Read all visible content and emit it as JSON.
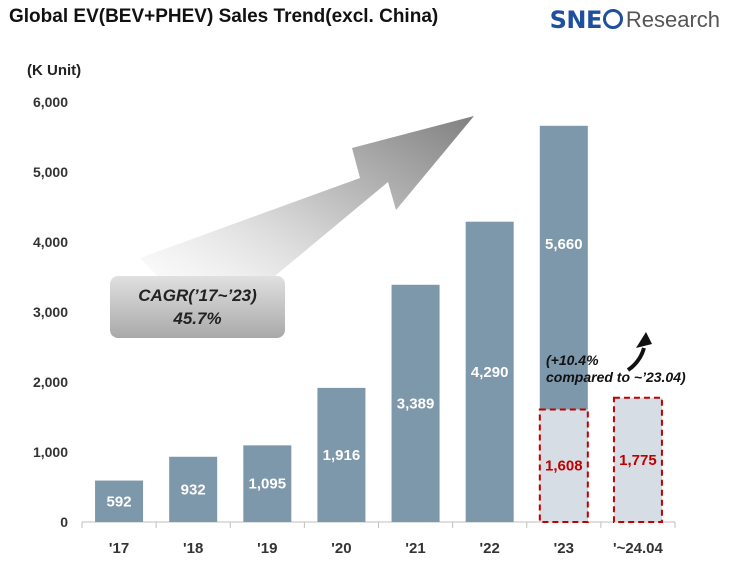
{
  "header": {
    "title": "Global EV(BEV+PHEV)  Sales Trend(excl. China)",
    "unit": "(K Unit)"
  },
  "logo": {
    "sne": "SNE",
    "research": "Research"
  },
  "cagr": {
    "line1": "CAGR(’17~’23)",
    "line2": "45.7%"
  },
  "annotation": {
    "line1": "(+10.4%",
    "line2": "compared to ~’23.04)"
  },
  "colors": {
    "bar": "#7d97ab",
    "highlight_fill": "#d6dde4",
    "highlight_border": "#c00000",
    "highlight_text": "#c00000",
    "arrow": "#888888"
  },
  "chart_data": {
    "type": "bar",
    "categories": [
      "'17",
      "'18",
      "'19",
      "'20",
      "'21",
      "'22",
      "'23",
      "'~24.04"
    ],
    "series": [
      {
        "values": [
          592,
          932,
          1095,
          1916,
          3389,
          4290,
          5660,
          null
        ]
      },
      {
        "values": [
          null,
          null,
          null,
          null,
          null,
          null,
          1608,
          1775
        ]
      }
    ],
    "data_labels": [
      "592",
      "932",
      "1,095",
      "1,916",
      "3,389",
      "4,290",
      "5,660",
      "1,608",
      "1,775"
    ],
    "title": "Global EV(BEV+PHEV)  Sales Trend(excl. China)",
    "ylabel": "(K Unit)",
    "ylim": [
      0,
      6000
    ],
    "yticks": [
      0,
      1000,
      2000,
      3000,
      4000,
      5000,
      6000
    ],
    "ytick_labels": [
      "0",
      "1,000",
      "2,000",
      "3,000",
      "4,000",
      "5,000",
      "6,000"
    ],
    "grid": false
  }
}
